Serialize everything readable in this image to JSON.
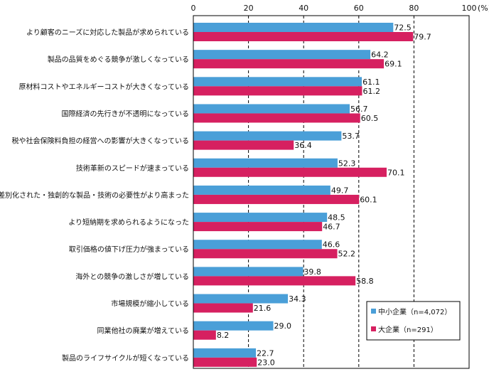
{
  "chart_data": {
    "type": "bar",
    "orientation": "horizontal",
    "categories": [
      "より顧客のニーズに対応した製品が求められている",
      "製品の品質をめぐる競争が激しくなっている",
      "原材料コストやエネルギーコストが大きくなっている",
      "国際経済の先行きが不透明になっている",
      "税や社会保険料負担の経営への影響が大きくなっている",
      "技術革新のスピードが速まっている",
      "差別化された・独創的な製品・技術の必要性がより高まった",
      "より短納期を求められるようになった",
      "取引価格の値下げ圧力が強まっている",
      "海外との競争の激しさが増している",
      "市場規模が縮小している",
      "同業他社の廃業が増えている",
      "製品のライフサイクルが短くなっている"
    ],
    "series": [
      {
        "name": "中小企業（n=4,072）",
        "color": "#4a9fd8",
        "values": [
          72.5,
          64.2,
          61.1,
          56.7,
          53.7,
          52.3,
          49.7,
          48.5,
          46.6,
          39.8,
          34.3,
          29.0,
          22.7
        ],
        "labels": [
          "72.5",
          "64.2",
          "61.1",
          "56.7",
          "53.7",
          "52.3",
          "49.7",
          "48.5",
          "46.6",
          "39.8",
          "34.3",
          "29.0",
          "22.7"
        ]
      },
      {
        "name": "大企業（n=291）",
        "color": "#d62060",
        "values": [
          79.7,
          69.1,
          61.2,
          60.5,
          36.4,
          70.1,
          60.1,
          46.7,
          52.2,
          58.8,
          21.6,
          8.2,
          23.0
        ],
        "labels": [
          "79.7",
          "69.1",
          "61.2",
          "60.5",
          "36.4",
          "70.1",
          "60.1",
          "46.7",
          "52.2",
          "58.8",
          "21.6",
          "8.2",
          "23.0"
        ]
      }
    ],
    "xlim": [
      0,
      100
    ],
    "xticks": [
      0,
      20,
      40,
      60,
      80,
      100
    ],
    "xtick_labels": [
      "0",
      "20",
      "40",
      "60",
      "80",
      "100"
    ],
    "xunit": "(%)",
    "grid": "vertical dashed",
    "legend_position": "bottom-right"
  }
}
